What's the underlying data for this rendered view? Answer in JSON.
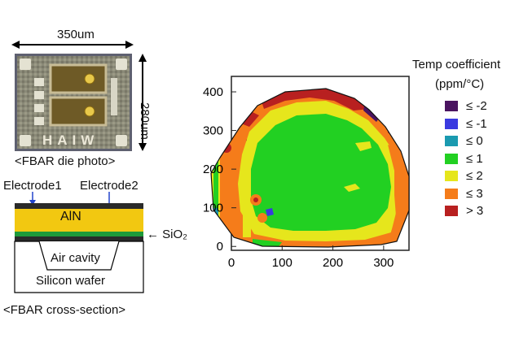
{
  "die_photo": {
    "width_label": "350um",
    "height_label": "280um",
    "caption": "<FBAR die photo>",
    "die_text": "HAIW"
  },
  "cross_section": {
    "electrode1": "Electrode1",
    "electrode2": "Electrode2",
    "aln": "AlN",
    "sio2": "← SiO₂",
    "air_cavity": "Air cavity",
    "silicon": "Silicon wafer",
    "caption": "<FBAR cross-section>"
  },
  "chart_data": {
    "type": "heatmap",
    "x_ticks": [
      "0",
      "100",
      "200",
      "300"
    ],
    "y_ticks": [
      "0",
      "100",
      "200",
      "300",
      "400"
    ],
    "xlim": [
      0,
      350
    ],
    "ylim": [
      -10,
      440
    ],
    "legend": {
      "title_line1": "Temp coefficient",
      "title_line2": "(ppm/°C)",
      "placement": "right",
      "items": [
        {
          "label": "≤ -2",
          "color": "#4a1460"
        },
        {
          "label": "≤ -1",
          "color": "#3a3ae0"
        },
        {
          "label": "≤ 0",
          "color": "#1a9ab0"
        },
        {
          "label": "≤ 1",
          "color": "#22d022"
        },
        {
          "label": "≤ 2",
          "color": "#e6e61c"
        },
        {
          "label": "≤ 3",
          "color": "#f57c1a"
        },
        {
          "label": "> 3",
          "color": "#b82020"
        }
      ]
    }
  }
}
